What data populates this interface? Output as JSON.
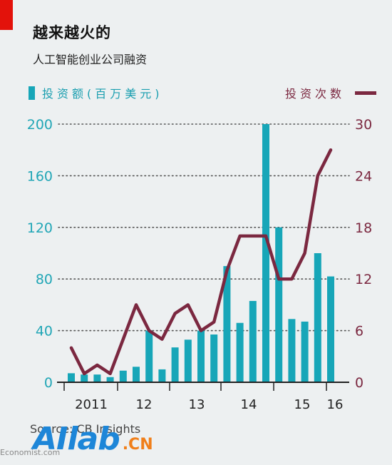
{
  "header": {
    "title": "越来越火的",
    "subtitle": "人工智能创业公司融资"
  },
  "legend": {
    "left_label": "投资额(百万美元)",
    "right_label": "投资次数"
  },
  "source": "Source: CB Insights",
  "watermark": {
    "logo": "AIlab",
    "suffix": ".CN",
    "small": "Economist.com"
  },
  "colors": {
    "bar": "#17a6b8",
    "line": "#7b2840",
    "accent": "#e3120b",
    "background": "#edf0f1"
  },
  "chart_data": {
    "type": "bar",
    "x_tick_labels": [
      "2011",
      "12",
      "13",
      "14",
      "15",
      "16"
    ],
    "y_left": {
      "label": "投资额(百万美元)",
      "ticks": [
        0,
        40,
        80,
        120,
        160,
        200
      ],
      "lim": [
        0,
        200
      ]
    },
    "y_right": {
      "label": "投资次数",
      "ticks": [
        0,
        6,
        12,
        18,
        24,
        30
      ],
      "lim": [
        0,
        30
      ]
    },
    "grid": true,
    "series": [
      {
        "name": "投资额(百万美元)",
        "type": "bar",
        "axis": "left",
        "values": [
          7,
          6,
          6,
          4,
          9,
          12,
          40,
          10,
          27,
          33,
          40,
          37,
          90,
          46,
          63,
          200,
          120,
          49,
          47,
          100,
          82
        ]
      },
      {
        "name": "投资次数",
        "type": "line",
        "axis": "right",
        "values": [
          4,
          1,
          2,
          1,
          5,
          9,
          6,
          5,
          8,
          9,
          6,
          7,
          13,
          17,
          17,
          17,
          12,
          12,
          15,
          24,
          27
        ]
      }
    ]
  }
}
